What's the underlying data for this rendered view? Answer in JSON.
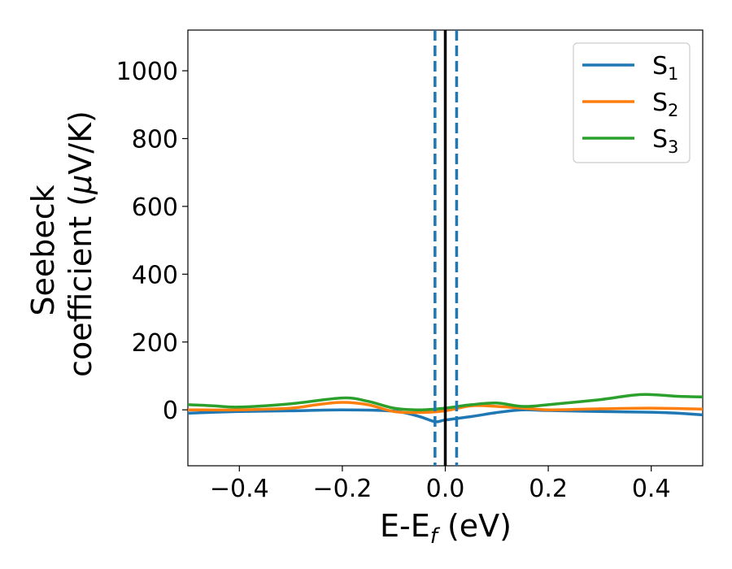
{
  "chart_data": {
    "type": "line",
    "xlabel_main": "E-E",
    "xlabel_sub": "f",
    "xlabel_unit": " (eV)",
    "ylabel_line1": "Seebeck",
    "ylabel_line2_pre": "coefficient  (",
    "ylabel_line2_mu": "μ",
    "ylabel_line2_post": "V/K)",
    "xlim": [
      -0.5,
      0.5
    ],
    "ylim": [
      -165,
      1120
    ],
    "x_ticks": [
      -0.4,
      -0.2,
      0.0,
      0.2,
      0.4
    ],
    "x_tick_labels": [
      "−0.4",
      "−0.2",
      "0.0",
      "0.2",
      "0.4"
    ],
    "y_ticks": [
      0,
      200,
      400,
      600,
      800,
      1000
    ],
    "y_tick_labels": [
      "0",
      "200",
      "400",
      "600",
      "800",
      "1000"
    ],
    "legend_position": "top-right",
    "series": [
      {
        "name": "S",
        "sub": "1",
        "color": "#1f77b4",
        "x": [
          -0.5,
          -0.4,
          -0.3,
          -0.2,
          -0.1,
          -0.05,
          -0.02,
          0.0,
          0.05,
          0.1,
          0.15,
          0.2,
          0.3,
          0.4,
          0.45,
          0.5
        ],
        "y": [
          -10,
          -5,
          -3,
          0,
          -4,
          -20,
          -35,
          -30,
          -20,
          -8,
          0,
          -2,
          -5,
          -7,
          -10,
          -15
        ]
      },
      {
        "name": "S",
        "sub": "2",
        "color": "#ff7f0e",
        "x": [
          -0.5,
          -0.4,
          -0.3,
          -0.25,
          -0.2,
          -0.15,
          -0.1,
          -0.05,
          0.0,
          0.05,
          0.1,
          0.15,
          0.2,
          0.3,
          0.4,
          0.5
        ],
        "y": [
          0,
          0,
          5,
          15,
          22,
          15,
          -5,
          -8,
          -3,
          12,
          10,
          5,
          0,
          3,
          5,
          2
        ]
      },
      {
        "name": "S",
        "sub": "3",
        "color": "#2ca02c",
        "x": [
          -0.5,
          -0.45,
          -0.4,
          -0.3,
          -0.2,
          -0.15,
          -0.1,
          -0.05,
          0.0,
          0.05,
          0.1,
          0.15,
          0.2,
          0.3,
          0.38,
          0.45,
          0.5
        ],
        "y": [
          15,
          12,
          8,
          18,
          35,
          25,
          5,
          0,
          5,
          15,
          20,
          10,
          15,
          30,
          45,
          40,
          38
        ]
      }
    ],
    "vlines": [
      {
        "x": 0.0,
        "color": "#000000",
        "style": "solid"
      },
      {
        "x": -0.02,
        "color": "#1f77b4",
        "style": "dashed"
      },
      {
        "x": 0.022,
        "color": "#1f77b4",
        "style": "dashed"
      }
    ]
  }
}
